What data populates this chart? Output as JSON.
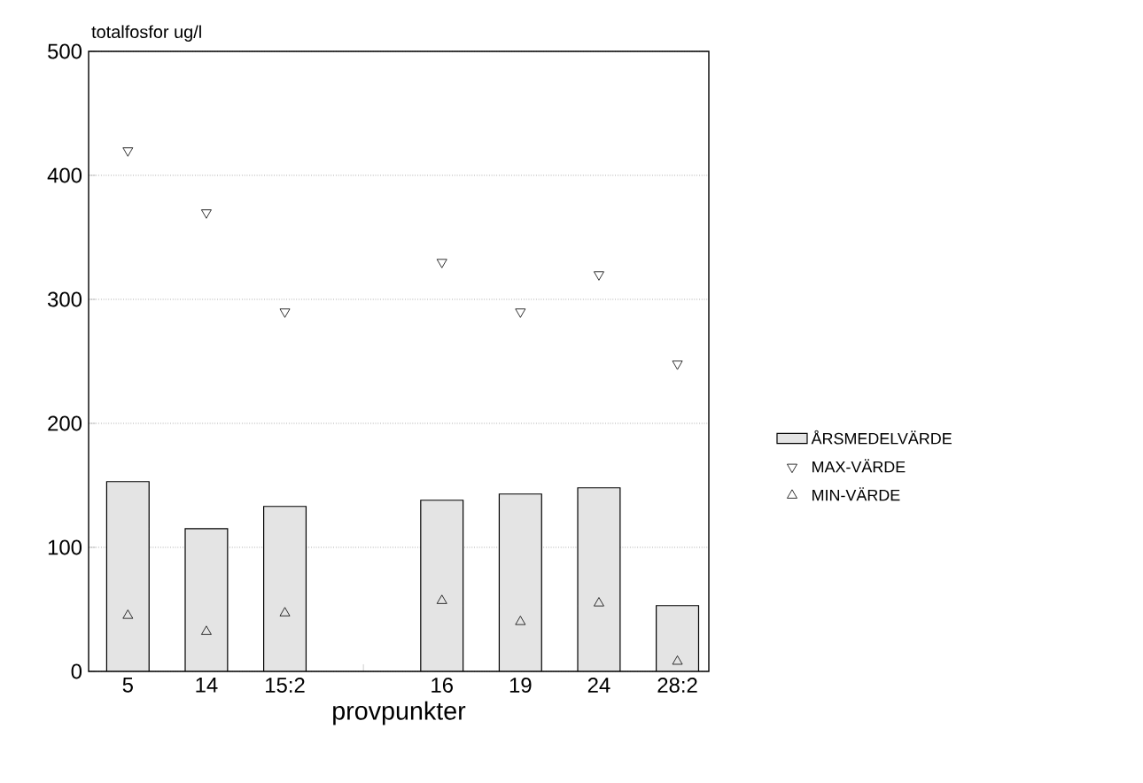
{
  "chart_data": {
    "type": "bar",
    "ylabel": "totalfosfor ug/l",
    "xlabel": "provpunkter",
    "categories": [
      "5",
      "14",
      "15:2",
      null,
      "16",
      "19",
      "24",
      "28:2"
    ],
    "series": [
      {
        "name": "ÅRSMEDELVÄRDE",
        "color": "#e4e4e4",
        "values": [
          153,
          115,
          133,
          null,
          138,
          143,
          148,
          53
        ]
      },
      {
        "name": "MAX-VÄRDE",
        "type": "scatter",
        "marker": "triangle-down",
        "color": "#000000",
        "values": [
          420,
          370,
          290,
          null,
          330,
          290,
          320,
          248
        ]
      },
      {
        "name": "MIN-VÄRDE",
        "type": "scatter",
        "marker": "triangle",
        "color": "#000000",
        "values": [
          45,
          32,
          47,
          null,
          57,
          40,
          55,
          8
        ]
      }
    ],
    "ylim": [
      0,
      500
    ],
    "yticks": [
      0,
      100,
      200,
      300,
      400,
      500
    ],
    "grid": "y",
    "legend": "right"
  }
}
